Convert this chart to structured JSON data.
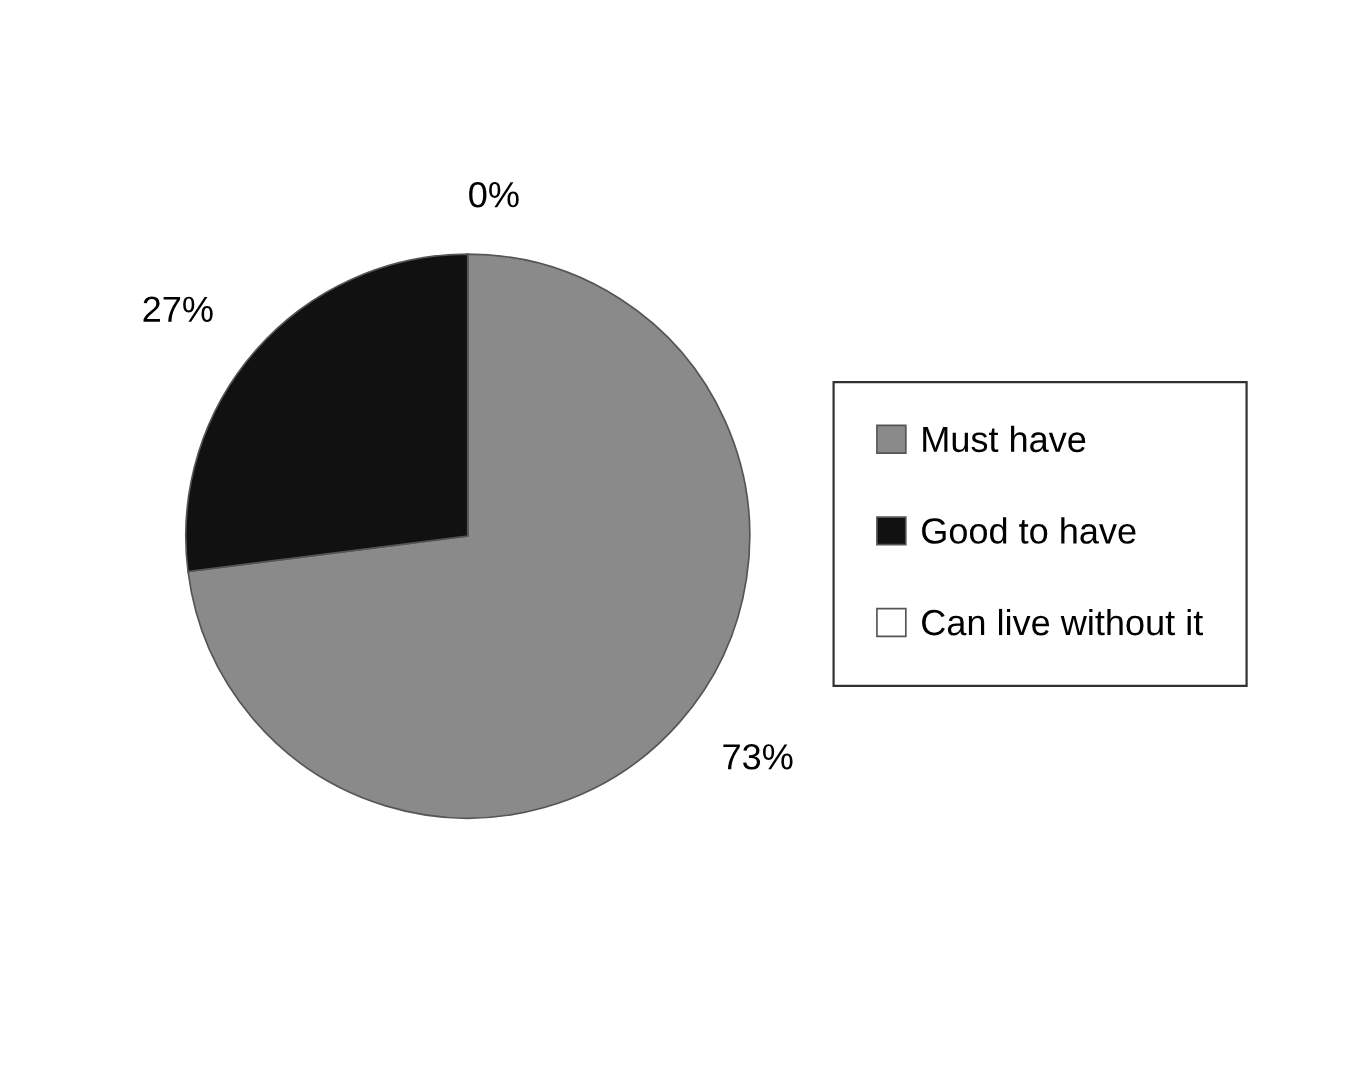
{
  "chart_data": {
    "type": "pie",
    "categories": [
      "Must have",
      "Good to have",
      "Can live without it"
    ],
    "values": [
      73,
      27,
      0
    ],
    "value_labels": [
      "73%",
      "27%",
      "0%"
    ],
    "colors": [
      "#8a8a8a",
      "#111111",
      "#ffffff"
    ],
    "legend": "right"
  }
}
